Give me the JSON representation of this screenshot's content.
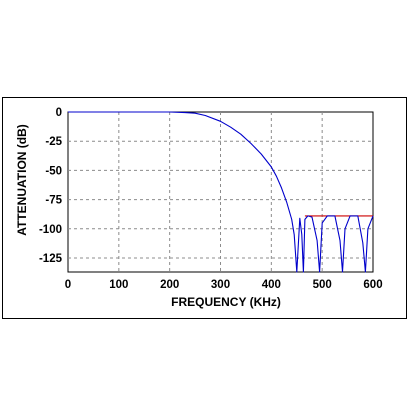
{
  "chart_data": {
    "type": "line",
    "xlabel": "FREQUENCY (KHz)",
    "ylabel": "ATTENUATION (dB)",
    "xlim": [
      0,
      600
    ],
    "ylim": [
      -137,
      0
    ],
    "x_ticks": [
      0,
      100,
      200,
      300,
      400,
      500,
      600
    ],
    "x_tick_labels": [
      "0",
      "100",
      "200",
      "300",
      "400",
      "500",
      "600"
    ],
    "y_ticks": [
      0,
      -25,
      -50,
      -75,
      -100,
      -125
    ],
    "y_tick_labels": [
      "0",
      "-25",
      "-50",
      "-75",
      "-100",
      "-125"
    ],
    "grid": true,
    "grid_style": "dashed",
    "series": [
      {
        "color": "#0000cc",
        "x": [
          0,
          100,
          200,
          230,
          250,
          270,
          300,
          320,
          340,
          360,
          380,
          400,
          410,
          420,
          430,
          440,
          445,
          450,
          456,
          460,
          463,
          466,
          472,
          480,
          490,
          495,
          500,
          510,
          525,
          535,
          540,
          545,
          555,
          570,
          580,
          585,
          590,
          600
        ],
        "y": [
          0,
          0,
          0,
          -0.5,
          -1,
          -3,
          -8,
          -13,
          -19,
          -27,
          -36,
          -47,
          -55,
          -65,
          -77,
          -92,
          -105,
          -137,
          -91,
          -105,
          -137,
          -92,
          -89,
          -90,
          -110,
          -137,
          -95,
          -89,
          -89,
          -110,
          -137,
          -100,
          -89,
          -89,
          -112,
          -137,
          -100,
          -89
        ]
      },
      {
        "color": "#cc0000",
        "x": [
          466,
          600
        ],
        "y": [
          -89,
          -89
        ]
      }
    ]
  }
}
